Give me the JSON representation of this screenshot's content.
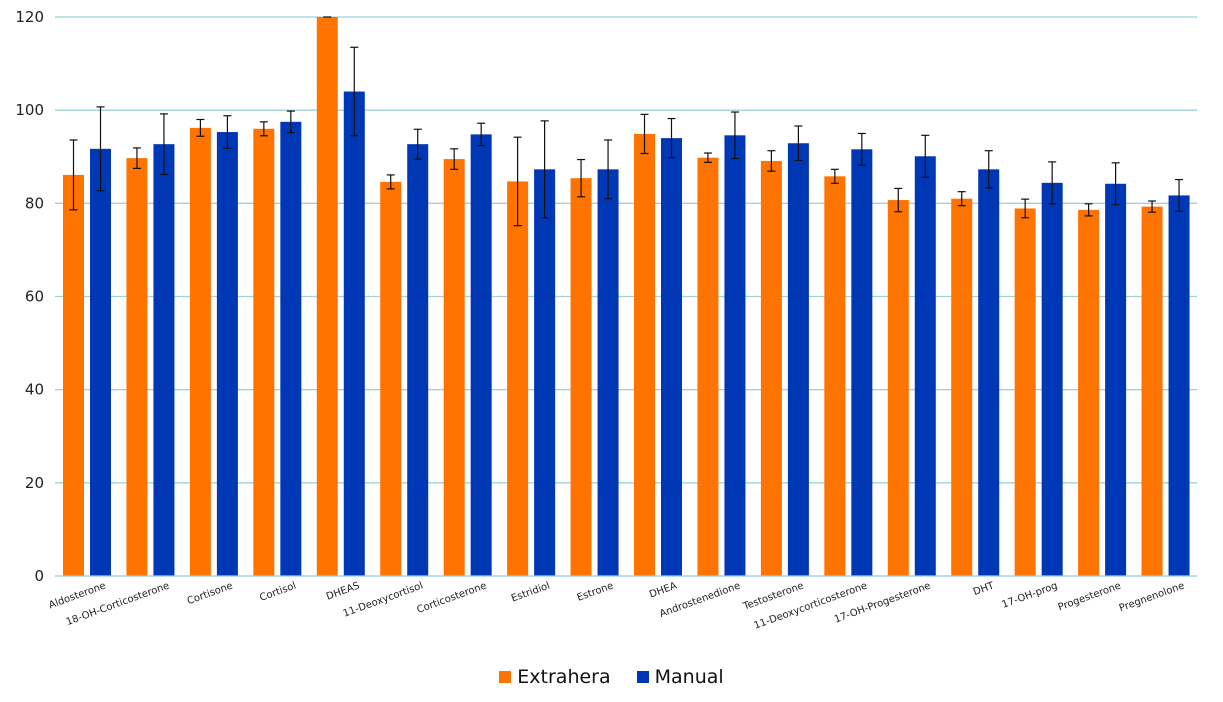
{
  "chart_data": {
    "type": "bar",
    "title": "",
    "xlabel": "",
    "ylabel": "",
    "ylim": [
      0,
      120
    ],
    "yticks": [
      0,
      20,
      40,
      60,
      80,
      100,
      120
    ],
    "grid": true,
    "legend_position": "bottom",
    "categories": [
      "Aldosterone",
      "18-OH-Corticosterone",
      "Cortisone",
      "Cortisol",
      "DHEAS",
      "11-Deoxycortisol",
      "Corticosterone",
      "Estridiol",
      "Estrone",
      "DHEA",
      "Androstenedione",
      "Testosterone",
      "11-Deoxycorticosterone",
      "17-OH-Progesterone",
      "DHT",
      "17-OH-prog",
      "Progesterone",
      "Pregnenolone"
    ],
    "series": [
      {
        "name": "Extrahera",
        "color": "#ff7300",
        "values": [
          86.1,
          89.7,
          96.2,
          96.0,
          128,
          84.6,
          89.5,
          84.7,
          85.4,
          94.9,
          89.8,
          89.1,
          85.8,
          80.7,
          81.0,
          78.9,
          78.6,
          79.3
        ],
        "errors": [
          7.5,
          2.2,
          1.8,
          1.5,
          8,
          1.5,
          2.2,
          9.5,
          4.0,
          4.2,
          1.0,
          2.2,
          1.5,
          2.5,
          1.5,
          2.0,
          1.3,
          1.2
        ]
      },
      {
        "name": "Manual",
        "color": "#0037b4",
        "values": [
          91.7,
          92.7,
          95.3,
          97.5,
          104.0,
          92.7,
          94.8,
          87.3,
          87.3,
          94.0,
          94.6,
          92.9,
          91.6,
          90.1,
          87.3,
          84.4,
          84.2,
          81.7
        ],
        "errors": [
          9.0,
          6.5,
          3.5,
          2.3,
          9.5,
          3.2,
          2.4,
          10.4,
          6.3,
          4.2,
          5.0,
          3.7,
          3.4,
          4.5,
          4.0,
          4.5,
          4.5,
          3.4
        ]
      }
    ]
  }
}
